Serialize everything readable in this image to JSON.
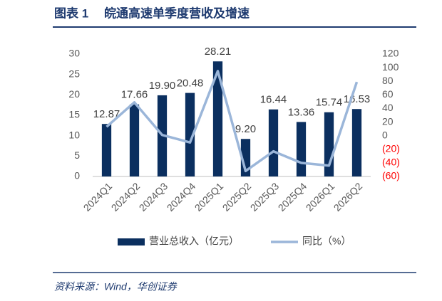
{
  "chart_data": {
    "type": "combo",
    "title_label": "图表 1",
    "title": "皖通高速单季度营收及增速",
    "source": "资料来源：Wind，华创证券",
    "categories": [
      "2024Q1",
      "2024Q2",
      "2024Q3",
      "2024Q4",
      "2025Q1",
      "2025Q2",
      "2025Q3",
      "2025Q4",
      "2026Q1",
      "2026Q2"
    ],
    "series": [
      {
        "name": "营业总收入（亿元）",
        "type": "bar",
        "color": "#0b2f5f",
        "values": [
          12.87,
          17.66,
          19.9,
          20.48,
          28.21,
          9.2,
          16.44,
          13.36,
          15.74,
          16.53
        ],
        "value_labels": [
          "12.87",
          "17.66",
          "19.90",
          "20.48",
          "28.21",
          "9.20",
          "16.44",
          "13.36",
          "15.74",
          "16.53"
        ]
      },
      {
        "name": "同比（%）",
        "type": "line",
        "color": "#9bb6d9",
        "axis": "y2",
        "values": [
          13,
          49,
          1,
          -10,
          95,
          -52,
          -23,
          -40,
          -44,
          79
        ]
      }
    ],
    "ylim": [
      0,
      30
    ],
    "yticks": [
      0,
      5,
      10,
      15,
      20,
      25,
      30
    ],
    "y2lim": [
      -60,
      120
    ],
    "y2ticks": [
      {
        "value": -60,
        "label": "(60)"
      },
      {
        "value": -40,
        "label": "(40)"
      },
      {
        "value": -20,
        "label": "(20)"
      },
      0,
      20,
      40,
      60,
      80,
      100,
      120
    ],
    "y2_negative_color": "#ff0000",
    "legend": "bottom"
  }
}
